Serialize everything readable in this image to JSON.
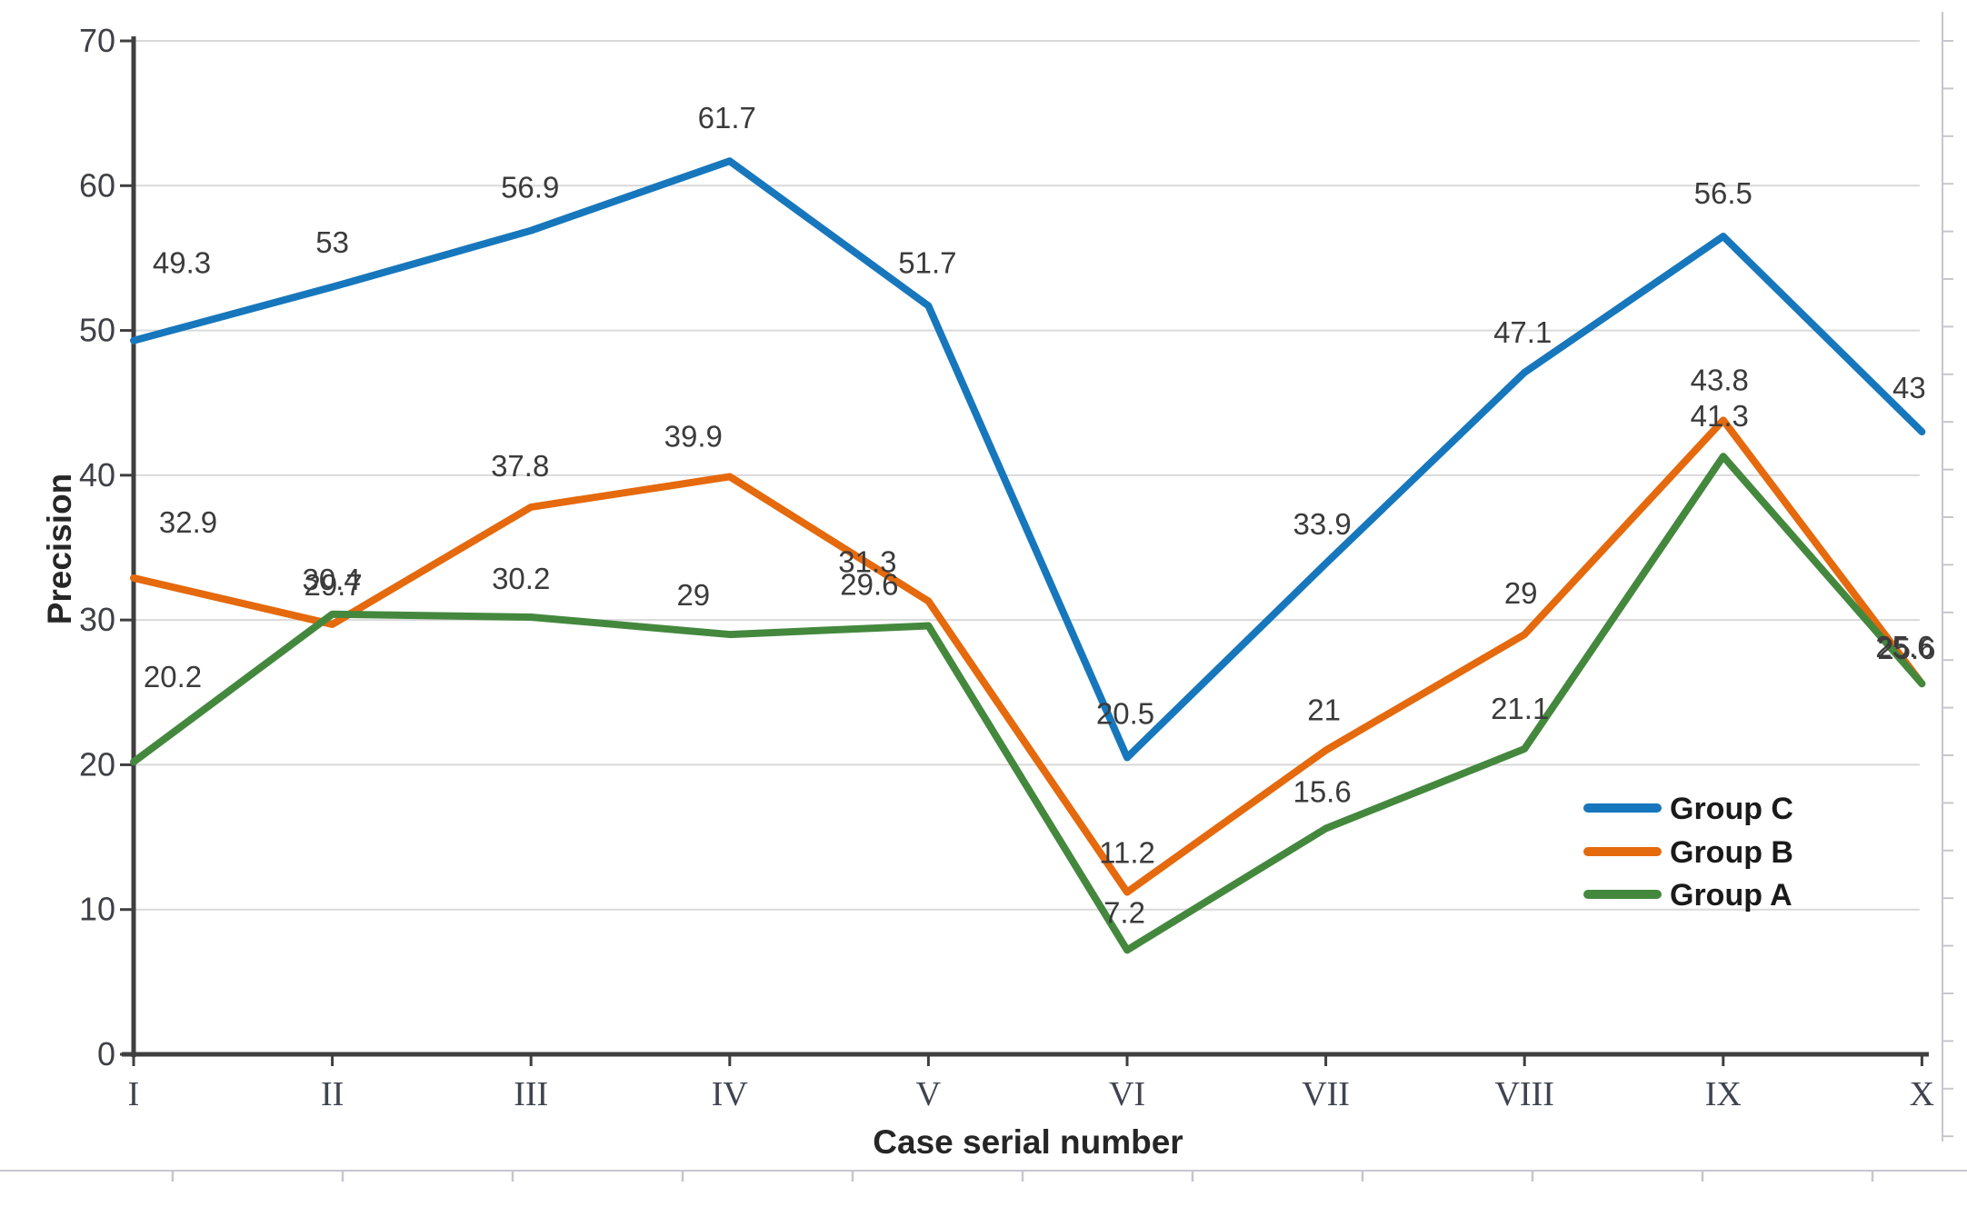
{
  "figure": {
    "kind": "embedded-journal-figure",
    "background": "#ffffff"
  },
  "chart_data": {
    "type": "line",
    "title": "",
    "xlabel": "Case serial number",
    "ylabel": "Precision",
    "categories": [
      "I",
      "II",
      "III",
      "IV",
      "V",
      "VI",
      "VII",
      "VIII",
      "IX",
      "X"
    ],
    "y_axis": {
      "min": 0,
      "max": 70,
      "step": 10,
      "ticks": [
        0,
        10,
        20,
        30,
        40,
        50,
        60,
        70
      ]
    },
    "grid": true,
    "data_labels_visible": true,
    "legend_position": "inside-right",
    "series": [
      {
        "name": "Group C",
        "color": "#1777BC",
        "values": [
          49.3,
          53,
          56.9,
          61.7,
          51.7,
          20.5,
          33.9,
          47.1,
          56.5,
          43
        ]
      },
      {
        "name": "Group B",
        "color": "#E5690D",
        "values": [
          32.9,
          29.7,
          37.8,
          39.9,
          31.3,
          11.2,
          21,
          29,
          43.8,
          25.6
        ]
      },
      {
        "name": "Group A",
        "color": "#44883E",
        "values": [
          20.2,
          30.4,
          30.2,
          29,
          29.6,
          7.2,
          15.6,
          21.1,
          41.3,
          25.6
        ]
      }
    ],
    "legend": {
      "order": [
        "Group C",
        "Group B",
        "Group A"
      ]
    }
  },
  "colors": {
    "gridline": "#D9D9D9",
    "axis": "#3F3F3F",
    "tick_label": "#3F4147",
    "category_label": "#3F4450",
    "data_label": "#3B3B3B",
    "legend_text": "#1A1A1A",
    "page_rule": "#C6C6CE"
  }
}
